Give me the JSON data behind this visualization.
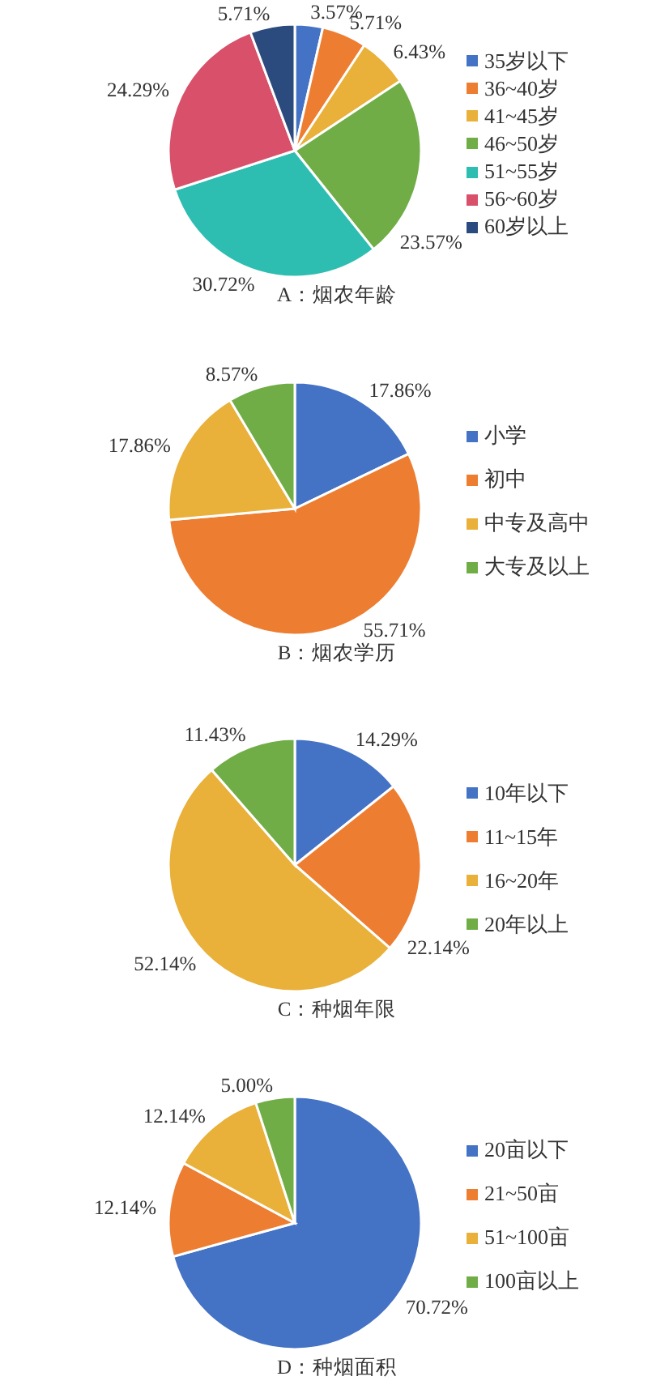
{
  "chart_data": [
    {
      "type": "pie",
      "title": "A：烟农年龄",
      "categories": [
        "35岁以下",
        "36~40岁",
        "41~45岁",
        "46~50岁",
        "51~55岁",
        "56~60岁",
        "60岁以上"
      ],
      "values": [
        3.57,
        5.71,
        6.43,
        23.57,
        30.72,
        24.29,
        5.71
      ],
      "colors": [
        "#4472c4",
        "#ed7d31",
        "#e9b03a",
        "#70ad47",
        "#2ebdb1",
        "#d8506a",
        "#2b4a7e"
      ],
      "value_labels": [
        "3.57%",
        "5.71%",
        "6.43%",
        "23.57%",
        "30.72%",
        "24.29%",
        "5.71%"
      ],
      "legend": "right"
    },
    {
      "type": "pie",
      "title": "B：烟农学历",
      "categories": [
        "小学",
        "初中",
        "中专及高中",
        "大专及以上"
      ],
      "values": [
        17.86,
        55.71,
        17.86,
        8.57
      ],
      "colors": [
        "#4472c4",
        "#ed7d31",
        "#e9b03a",
        "#70ad47"
      ],
      "value_labels": [
        "17.86%",
        "55.71%",
        "17.86%",
        "8.57%"
      ],
      "legend": "right"
    },
    {
      "type": "pie",
      "title": "C：种烟年限",
      "categories": [
        "10年以下",
        "11~15年",
        "16~20年",
        "20年以上"
      ],
      "values": [
        14.29,
        22.14,
        52.14,
        11.43
      ],
      "colors": [
        "#4472c4",
        "#ed7d31",
        "#e9b03a",
        "#70ad47"
      ],
      "value_labels": [
        "14.29%",
        "22.14%",
        "52.14%",
        "11.43%"
      ],
      "legend": "right"
    },
    {
      "type": "pie",
      "title": "D：种烟面积",
      "categories": [
        "20亩以下",
        "21~50亩",
        "51~100亩",
        "100亩以上"
      ],
      "values": [
        70.72,
        12.14,
        12.14,
        5.0
      ],
      "colors": [
        "#4472c4",
        "#ed7d31",
        "#e9b03a",
        "#70ad47"
      ],
      "value_labels": [
        "70.72%",
        "12.14%",
        "12.14%",
        "5.00%"
      ],
      "legend": "right"
    }
  ]
}
